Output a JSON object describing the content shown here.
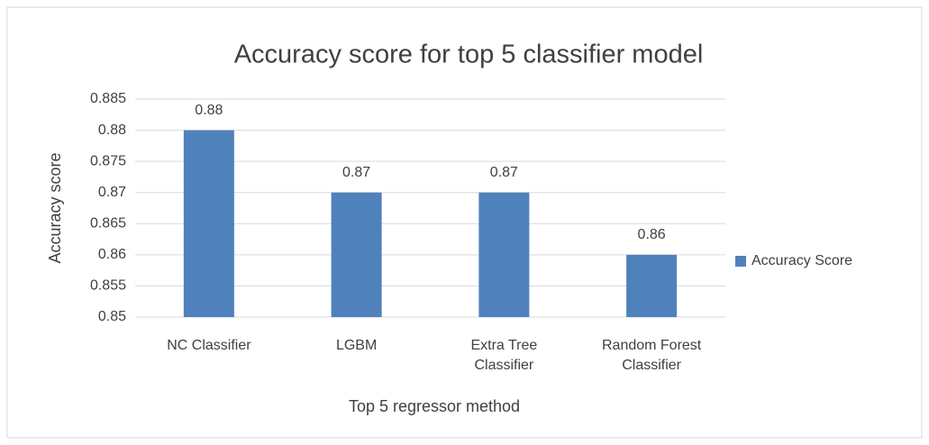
{
  "chart_data": {
    "type": "bar",
    "title": "Accuracy score for top 5 classifier model",
    "x_label": "Top 5 regressor method",
    "y_label": "Accuracy score",
    "categories": [
      "NC Classifier",
      "LGBM",
      "Extra Tree Classifier",
      "Random Forest Classifier"
    ],
    "series": [
      {
        "name": "Accuracy Score",
        "color": "#4f81bd",
        "values": [
          0.88,
          0.87,
          0.87,
          0.86
        ]
      }
    ],
    "ylim": [
      0.85,
      0.885
    ],
    "yticks": [
      0.85,
      0.855,
      0.86,
      0.865,
      0.87,
      0.875,
      0.88,
      0.885
    ],
    "grid": true,
    "legend": "right"
  }
}
